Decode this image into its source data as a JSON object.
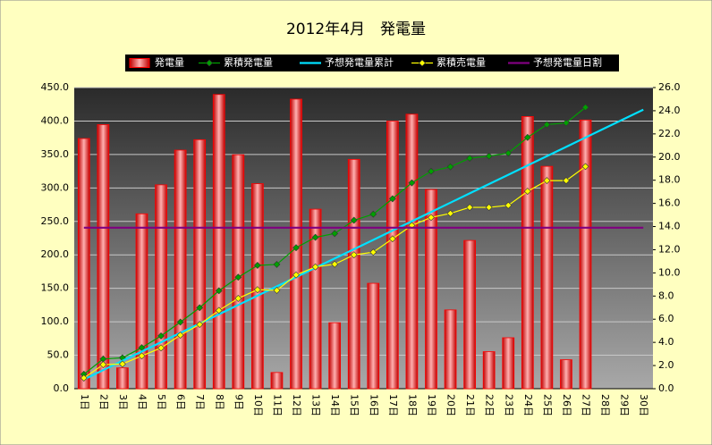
{
  "chart_data": {
    "type": "combo",
    "title": "2012年4月　発電量",
    "categories": [
      "1日",
      "2日",
      "3日",
      "4日",
      "5日",
      "6日",
      "7日",
      "8日",
      "9日",
      "10日",
      "11日",
      "12日",
      "13日",
      "14日",
      "15日",
      "16日",
      "17日",
      "18日",
      "19日",
      "20日",
      "21日",
      "22日",
      "23日",
      "24日",
      "25日",
      "26日",
      "27日",
      "28日",
      "29日",
      "30日"
    ],
    "series": [
      {
        "name": "発電量",
        "type": "bar",
        "axis": "y2",
        "color": "#ff0000",
        "values": [
          21.6,
          22.8,
          1.8,
          15.1,
          17.6,
          20.6,
          21.5,
          25.4,
          20.2,
          17.7,
          1.4,
          25.0,
          15.5,
          5.7,
          19.8,
          9.1,
          23.1,
          23.7,
          17.2,
          6.8,
          12.8,
          3.2,
          4.4,
          23.5,
          19.2,
          2.5,
          23.2,
          null,
          null,
          null
        ]
      },
      {
        "name": "累積発電量",
        "type": "line",
        "marker": true,
        "color": "#00a000",
        "values": [
          21.6,
          44.4,
          46.2,
          61.3,
          78.9,
          99.5,
          121,
          146.4,
          166.6,
          184.3,
          185.7,
          210.7,
          226.2,
          231.9,
          251.7,
          260.8,
          283.9,
          307.6,
          324.8,
          331.6,
          344.4,
          347.6,
          352,
          375.5,
          394.7,
          397.2,
          420.4,
          null,
          null,
          null
        ]
      },
      {
        "name": "予想発電量累計",
        "type": "line",
        "marker": false,
        "color": "#00e0ff",
        "values": [
          13.9,
          27.8,
          41.7,
          55.6,
          69.5,
          83.4,
          97.3,
          111.2,
          125.1,
          139,
          152.9,
          166.8,
          180.7,
          194.6,
          208.5,
          222.4,
          236.3,
          250.2,
          264.1,
          278,
          291.9,
          305.8,
          319.7,
          333.6,
          347.5,
          361.4,
          375.3,
          389.2,
          403.1,
          417
        ]
      },
      {
        "name": "累積売電量",
        "type": "line",
        "marker": true,
        "color": "#ffff00",
        "values": [
          16,
          36,
          37,
          49,
          61,
          80,
          96,
          117,
          135,
          148,
          147,
          170,
          182,
          186,
          200,
          204,
          224,
          244,
          256,
          262,
          271,
          271,
          274,
          295,
          311,
          311,
          332,
          null,
          null,
          null
        ]
      },
      {
        "name": "予想発電量日割",
        "type": "line",
        "marker": false,
        "axis": "y2",
        "color": "#800080",
        "values": [
          13.9,
          13.9,
          13.9,
          13.9,
          13.9,
          13.9,
          13.9,
          13.9,
          13.9,
          13.9,
          13.9,
          13.9,
          13.9,
          13.9,
          13.9,
          13.9,
          13.9,
          13.9,
          13.9,
          13.9,
          13.9,
          13.9,
          13.9,
          13.9,
          13.9,
          13.9,
          13.9,
          13.9,
          13.9,
          13.9
        ]
      }
    ],
    "ylim": [
      0,
      450
    ],
    "yticks": [
      {
        "value": 0,
        "label": "0.0"
      },
      {
        "value": 50,
        "label": "50.0"
      },
      {
        "value": 100,
        "label": "100.0"
      },
      {
        "value": 150,
        "label": "150.0"
      },
      {
        "value": 200,
        "label": "200.0"
      },
      {
        "value": 250,
        "label": "250.0"
      },
      {
        "value": 300,
        "label": "300.0"
      },
      {
        "value": 350,
        "label": "350.0"
      },
      {
        "value": 400,
        "label": "400.0"
      },
      {
        "value": 450,
        "label": "450.0"
      }
    ],
    "y2lim": [
      0,
      26
    ],
    "y2ticks": [
      {
        "value": 0,
        "label": "0.0"
      },
      {
        "value": 2,
        "label": "2.0"
      },
      {
        "value": 4,
        "label": "4.0"
      },
      {
        "value": 6,
        "label": "6.0"
      },
      {
        "value": 8,
        "label": "8.0"
      },
      {
        "value": 10,
        "label": "10.0"
      },
      {
        "value": 12,
        "label": "12.0"
      },
      {
        "value": 14,
        "label": "14.0"
      },
      {
        "value": 16,
        "label": "16.0"
      },
      {
        "value": 18,
        "label": "18.0"
      },
      {
        "value": 20,
        "label": "20.0"
      },
      {
        "value": 22,
        "label": "22.0"
      },
      {
        "value": 24,
        "label": "24.0"
      },
      {
        "value": 26,
        "label": "26.0"
      }
    ],
    "grid": true,
    "legend": "top"
  }
}
